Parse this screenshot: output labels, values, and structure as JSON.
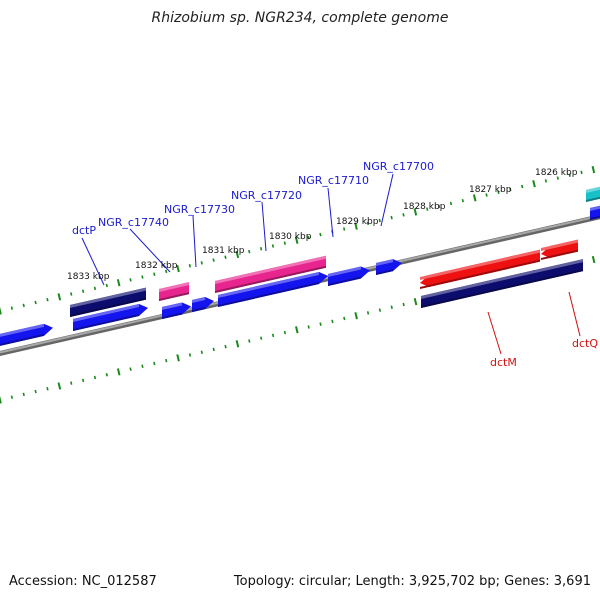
{
  "title": "Rhizobium sp. NGR234, complete genome",
  "footer": {
    "accession": "Accession: NC_012587",
    "summary": "Topology: circular; Length: 3,925,702 bp; Genes: 3,691"
  },
  "colors": {
    "backbone": "#888888",
    "tick": "#1a8a1a",
    "navy": "#0c0c6e",
    "blue": "#1414ee",
    "magenta": "#e8258f",
    "red": "#ee1111",
    "cyan": "#18c0c8",
    "label_blue": "#1a1ad0",
    "label_red": "#d41010"
  },
  "scale_labels": [
    "1833 kbp",
    "1832 kbp",
    "1831 kbp",
    "1830 kbp",
    "1829 kbp",
    "1828 kbp",
    "1827 kbp",
    "1826 kbp"
  ],
  "gene_labels": [
    {
      "text": "dctP",
      "color": "label_blue"
    },
    {
      "text": "NGR_c17740",
      "color": "label_blue"
    },
    {
      "text": "NGR_c17730",
      "color": "label_blue"
    },
    {
      "text": "NGR_c17720",
      "color": "label_blue"
    },
    {
      "text": "NGR_c17710",
      "color": "label_blue"
    },
    {
      "text": "NGR_c17700",
      "color": "label_blue"
    },
    {
      "text": "dctM",
      "color": "label_red"
    },
    {
      "text": "dctQ",
      "color": "label_red"
    }
  ]
}
